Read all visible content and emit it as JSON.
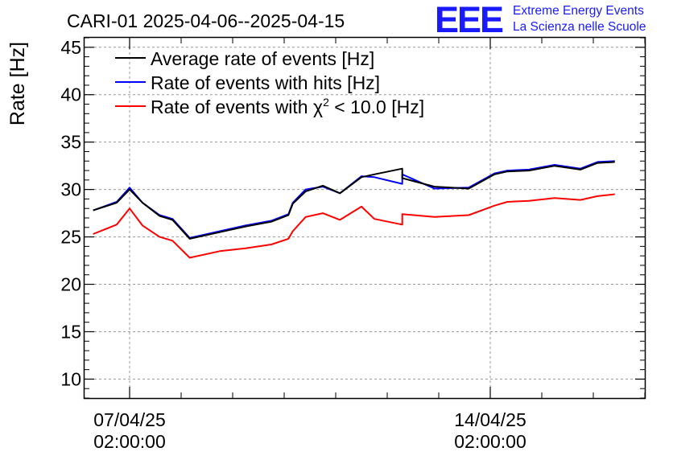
{
  "logo": {
    "letters": "EEE",
    "line1": "Extreme Energy Events",
    "line2": "La Scienza nelle Scuole",
    "color": "#1a1aff"
  },
  "chart_data": {
    "type": "line",
    "title": "CARI-01 2025-04-06--2025-04-15",
    "xlabel": "",
    "ylabel": "Rate [Hz]",
    "ylim": [
      8,
      46
    ],
    "yticks": [
      10,
      15,
      20,
      25,
      30,
      35,
      40,
      45
    ],
    "xlim": [
      "2025-04-06 05:00",
      "2025-04-17 02:00"
    ],
    "xticks": [
      {
        "x": "2025-04-07 02:00",
        "line1": "07/04/25",
        "line2": "02:00:00"
      },
      {
        "x": "2025-04-14 02:00",
        "line1": "14/04/25",
        "line2": "02:00:00"
      }
    ],
    "grid": true,
    "legend_position": "top-left",
    "legend": [
      {
        "label_main": "Average rate of events [Hz]",
        "color": "#000000"
      },
      {
        "label_main": "Rate of events with hits [Hz]",
        "color": "#0000ff"
      },
      {
        "label_main": "Rate of events with ",
        "symbol": "χ",
        "sup": "2",
        "label_tail": " < 10.0 [Hz]",
        "color": "#ff0000"
      }
    ],
    "series": [
      {
        "color": "#000000",
        "x": [
          "2025-04-06 09:00",
          "2025-04-06 20:00",
          "2025-04-07 02:00",
          "2025-04-07 08:00",
          "2025-04-07 16:00",
          "2025-04-07 22:00",
          "2025-04-08 06:00",
          "2025-04-08 20:00",
          "2025-04-09 08:00",
          "2025-04-09 20:00",
          "2025-04-10 04:00",
          "2025-04-10 06:00",
          "2025-04-10 12:00",
          "2025-04-10 20:00",
          "2025-04-11 04:00",
          "2025-04-11 14:00",
          "2025-04-11 20:00",
          "2025-04-12 09:00",
          "2025-04-12 09:01",
          "2025-04-13 00:00",
          "2025-04-13 16:00",
          "2025-04-14 04:00",
          "2025-04-14 10:00",
          "2025-04-14 20:00",
          "2025-04-15 08:00",
          "2025-04-15 20:00",
          "2025-04-16 04:00",
          "2025-04-16 12:00"
        ],
        "y": [
          27.8,
          28.6,
          30.0,
          28.6,
          27.2,
          26.8,
          24.8,
          25.5,
          26.1,
          26.6,
          27.3,
          28.5,
          29.8,
          30.4,
          29.6,
          31.3,
          31.6,
          32.2,
          31.2,
          30.3,
          30.1,
          31.6,
          31.9,
          32.0,
          32.5,
          32.1,
          32.8,
          32.9
        ]
      },
      {
        "color": "#0000ff",
        "x": [
          "2025-04-06 09:00",
          "2025-04-06 20:00",
          "2025-04-07 02:00",
          "2025-04-07 08:00",
          "2025-04-07 16:00",
          "2025-04-07 22:00",
          "2025-04-08 06:00",
          "2025-04-08 20:00",
          "2025-04-09 08:00",
          "2025-04-09 20:00",
          "2025-04-10 04:00",
          "2025-04-10 06:00",
          "2025-04-10 12:00",
          "2025-04-10 20:00",
          "2025-04-11 04:00",
          "2025-04-11 14:00",
          "2025-04-11 20:00",
          "2025-04-12 09:00",
          "2025-04-12 09:01",
          "2025-04-13 00:00",
          "2025-04-13 16:00",
          "2025-04-14 04:00",
          "2025-04-14 10:00",
          "2025-04-14 20:00",
          "2025-04-15 08:00",
          "2025-04-15 20:00",
          "2025-04-16 04:00",
          "2025-04-16 12:00"
        ],
        "y": [
          27.8,
          28.7,
          30.2,
          28.6,
          27.3,
          26.9,
          24.9,
          25.6,
          26.2,
          26.7,
          27.4,
          28.6,
          30.0,
          30.3,
          29.6,
          31.4,
          31.3,
          30.6,
          31.6,
          30.1,
          30.2,
          31.7,
          32.0,
          32.1,
          32.6,
          32.2,
          32.9,
          33.0
        ]
      },
      {
        "color": "#ff0000",
        "x": [
          "2025-04-06 09:00",
          "2025-04-06 20:00",
          "2025-04-07 02:00",
          "2025-04-07 08:00",
          "2025-04-07 16:00",
          "2025-04-07 22:00",
          "2025-04-08 06:00",
          "2025-04-08 20:00",
          "2025-04-09 08:00",
          "2025-04-09 20:00",
          "2025-04-10 04:00",
          "2025-04-10 06:00",
          "2025-04-10 12:00",
          "2025-04-10 20:00",
          "2025-04-11 04:00",
          "2025-04-11 14:00",
          "2025-04-11 20:00",
          "2025-04-12 09:00",
          "2025-04-12 09:01",
          "2025-04-13 00:00",
          "2025-04-13 16:00",
          "2025-04-14 04:00",
          "2025-04-14 10:00",
          "2025-04-14 20:00",
          "2025-04-15 08:00",
          "2025-04-15 20:00",
          "2025-04-16 04:00",
          "2025-04-16 12:00"
        ],
        "y": [
          25.3,
          26.3,
          28.0,
          26.2,
          25.0,
          24.6,
          22.8,
          23.5,
          23.8,
          24.2,
          24.8,
          25.6,
          27.1,
          27.5,
          26.8,
          28.2,
          26.9,
          26.3,
          27.4,
          27.1,
          27.3,
          28.3,
          28.7,
          28.8,
          29.1,
          28.9,
          29.3,
          29.5
        ]
      }
    ]
  }
}
